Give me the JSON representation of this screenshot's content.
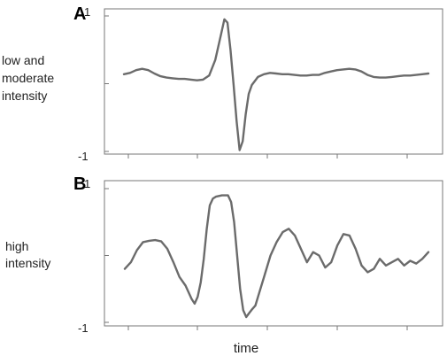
{
  "chart_data": [
    {
      "type": "line",
      "panel_label": "A",
      "side_label_lines": [
        "low and",
        "moderate",
        "intensity"
      ],
      "y_tick_labels": [
        "1",
        "-1"
      ],
      "ylim": [
        -1,
        1
      ],
      "xlim": [
        0,
        1
      ],
      "series": [
        {
          "x": [
            0,
            0.02,
            0.04,
            0.06,
            0.08,
            0.1,
            0.12,
            0.14,
            0.16,
            0.18,
            0.2,
            0.22,
            0.24,
            0.26,
            0.28,
            0.3,
            0.32,
            0.33,
            0.34,
            0.35,
            0.36,
            0.37,
            0.38,
            0.39,
            0.4,
            0.41,
            0.42,
            0.44,
            0.46,
            0.48,
            0.5,
            0.52,
            0.54,
            0.56,
            0.58,
            0.6,
            0.62,
            0.64,
            0.66,
            0.68,
            0.7,
            0.72,
            0.74,
            0.76,
            0.78,
            0.8,
            0.82,
            0.84,
            0.86,
            0.88,
            0.9,
            0.92,
            0.94,
            0.96,
            0.98,
            1.0
          ],
          "y": [
            0.14,
            0.16,
            0.2,
            0.22,
            0.2,
            0.15,
            0.11,
            0.09,
            0.08,
            0.07,
            0.07,
            0.06,
            0.05,
            0.06,
            0.12,
            0.35,
            0.75,
            0.95,
            0.9,
            0.5,
            0.0,
            -0.55,
            -0.98,
            -0.85,
            -0.45,
            -0.15,
            -0.02,
            0.1,
            0.14,
            0.16,
            0.15,
            0.14,
            0.14,
            0.13,
            0.12,
            0.12,
            0.13,
            0.13,
            0.16,
            0.18,
            0.2,
            0.21,
            0.22,
            0.21,
            0.18,
            0.13,
            0.1,
            0.09,
            0.09,
            0.1,
            0.11,
            0.12,
            0.12,
            0.13,
            0.14,
            0.15
          ]
        }
      ]
    },
    {
      "type": "line",
      "panel_label": "B",
      "side_label_lines": [
        "high",
        "intensity"
      ],
      "y_tick_labels": [
        "1",
        "-1"
      ],
      "ylim": [
        -1,
        1
      ],
      "xlim": [
        0,
        1
      ],
      "xlabel": "time",
      "series": [
        {
          "x": [
            0,
            0.02,
            0.04,
            0.06,
            0.08,
            0.1,
            0.12,
            0.14,
            0.16,
            0.18,
            0.2,
            0.22,
            0.23,
            0.24,
            0.25,
            0.26,
            0.27,
            0.28,
            0.29,
            0.3,
            0.32,
            0.34,
            0.35,
            0.36,
            0.37,
            0.38,
            0.39,
            0.4,
            0.41,
            0.42,
            0.43,
            0.44,
            0.46,
            0.48,
            0.5,
            0.52,
            0.54,
            0.56,
            0.58,
            0.6,
            0.62,
            0.64,
            0.66,
            0.68,
            0.7,
            0.72,
            0.74,
            0.76,
            0.78,
            0.8,
            0.82,
            0.84,
            0.86,
            0.88,
            0.9,
            0.92,
            0.94,
            0.96,
            0.98,
            1.0
          ],
          "y": [
            -0.2,
            -0.1,
            0.08,
            0.2,
            0.22,
            0.23,
            0.21,
            0.1,
            -0.1,
            -0.32,
            -0.45,
            -0.65,
            -0.72,
            -0.62,
            -0.4,
            -0.05,
            0.4,
            0.75,
            0.85,
            0.88,
            0.9,
            0.9,
            0.8,
            0.5,
            0.0,
            -0.5,
            -0.82,
            -0.92,
            -0.86,
            -0.8,
            -0.75,
            -0.6,
            -0.3,
            0.0,
            0.2,
            0.35,
            0.4,
            0.3,
            0.1,
            -0.1,
            0.05,
            0.0,
            -0.18,
            -0.1,
            0.15,
            0.32,
            0.3,
            0.1,
            -0.15,
            -0.25,
            -0.2,
            -0.05,
            -0.15,
            -0.1,
            -0.05,
            -0.15,
            -0.08,
            -0.12,
            -0.05,
            0.05
          ]
        }
      ]
    }
  ]
}
